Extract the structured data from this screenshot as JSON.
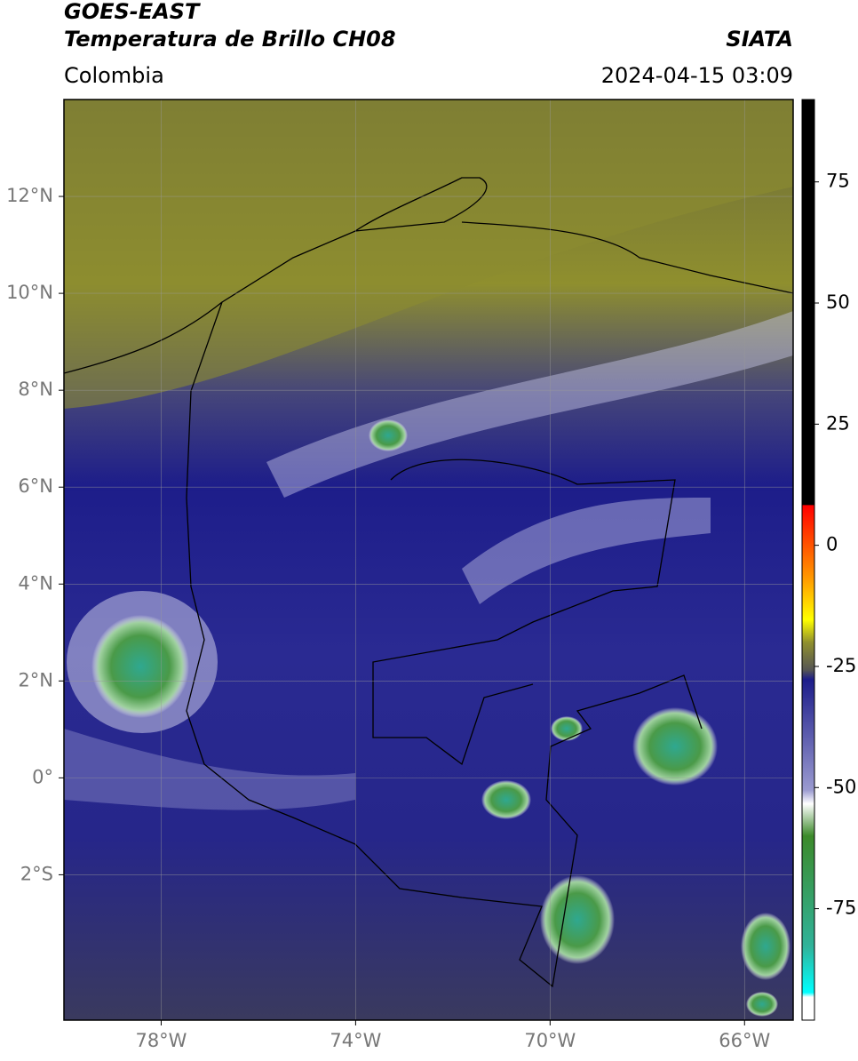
{
  "header": {
    "title": "GOES-EAST",
    "subtitle": "Temperatura de Brillo CH08",
    "source": "SIATA",
    "region": "Colombia",
    "datetime": "2024-04-15 03:09"
  },
  "map": {
    "xlim": [
      -80,
      -65
    ],
    "ylim": [
      -5,
      14
    ],
    "grid": true,
    "xticks": [
      {
        "value": -78,
        "label": "78°W"
      },
      {
        "value": -74,
        "label": "74°W"
      },
      {
        "value": -70,
        "label": "70°W"
      },
      {
        "value": -66,
        "label": "66°W"
      }
    ],
    "yticks": [
      {
        "value": 12,
        "label": "12°N"
      },
      {
        "value": 10,
        "label": "10°N"
      },
      {
        "value": 8,
        "label": "8°N"
      },
      {
        "value": 6,
        "label": "6°N"
      },
      {
        "value": 4,
        "label": "4°N"
      },
      {
        "value": 2,
        "label": "2°N"
      },
      {
        "value": 0,
        "label": "0°"
      },
      {
        "value": -2,
        "label": "2°S"
      }
    ]
  },
  "colorbar": {
    "lim": [
      -98,
      92
    ],
    "ticks": [
      75,
      50,
      25,
      0,
      -25,
      -50,
      -75
    ]
  }
}
